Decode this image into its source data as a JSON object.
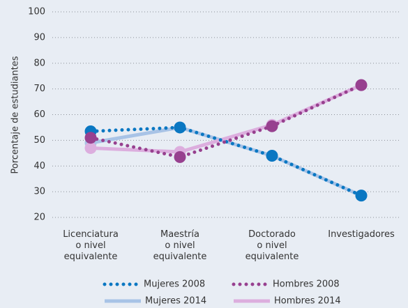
{
  "chart_data": {
    "type": "line",
    "ylabel": "Porcentaje de estudiantes",
    "categories": [
      "Licenciatura\no nivel\nequivalente",
      "Maestría\no nivel\nequivalente",
      "Doctorado\no nivel\nequivalente",
      "Investigadores"
    ],
    "series": [
      {
        "name": "Mujeres 2014",
        "color": "#a8c3e6",
        "style": "solid",
        "values": [
          49,
          55,
          44,
          28.5
        ]
      },
      {
        "name": "Hombres 2014",
        "color": "#dcaede",
        "style": "solid",
        "values": [
          47,
          45.5,
          56,
          71.5
        ]
      },
      {
        "name": "Mujeres 2008",
        "color": "#0a77c2",
        "style": "dotted",
        "values": [
          53.5,
          55,
          44,
          28.5
        ]
      },
      {
        "name": "Hombres 2008",
        "color": "#97408f",
        "style": "dotted",
        "values": [
          51,
          43.5,
          55.5,
          71.5
        ]
      }
    ],
    "ylim": [
      20,
      100
    ],
    "yticks": [
      20,
      30,
      40,
      50,
      60,
      70,
      80,
      90,
      100
    ],
    "grid": true
  }
}
